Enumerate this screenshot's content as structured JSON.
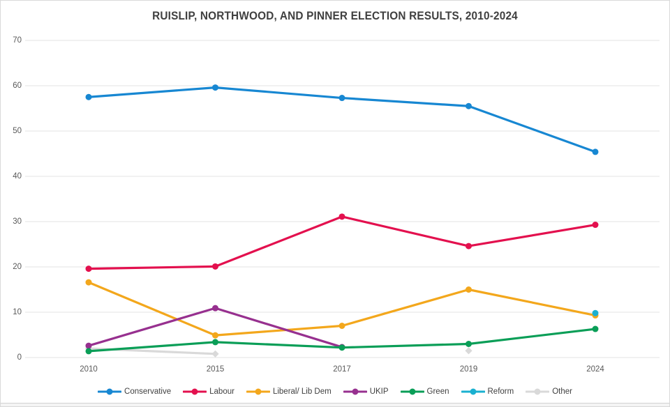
{
  "title": "RUISLIP, NORTHWOOD, AND PINNER ELECTION RESULTS, 2010-2024",
  "colors": {
    "background": "#ffffff",
    "border": "#d9d9d9",
    "grid": "#e3e3e3",
    "axis_text": "#595959",
    "title_text": "#404040",
    "legend_text": "#404040"
  },
  "chart_data": {
    "type": "line",
    "title": "RUISLIP, NORTHWOOD, AND PINNER ELECTION RESULTS, 2010-2024",
    "categories": [
      "2010",
      "2015",
      "2017",
      "2019",
      "2024"
    ],
    "series": [
      {
        "name": "Conservative",
        "color": "#1787d2",
        "marker": "circle",
        "values": [
          57.5,
          59.6,
          57.3,
          55.5,
          45.4
        ]
      },
      {
        "name": "Labour",
        "color": "#e3104e",
        "marker": "circle",
        "values": [
          19.6,
          20.1,
          31.1,
          24.6,
          29.3
        ]
      },
      {
        "name": "Liberal/ Lib Dem",
        "color": "#f3a71c",
        "marker": "circle",
        "values": [
          16.6,
          4.9,
          7.0,
          15.0,
          9.3
        ]
      },
      {
        "name": "UKIP",
        "color": "#97308f",
        "marker": "circle",
        "values": [
          2.6,
          10.9,
          2.3,
          null,
          null
        ]
      },
      {
        "name": "Green",
        "color": "#0a9e57",
        "marker": "circle",
        "values": [
          1.4,
          3.4,
          2.2,
          3.0,
          6.3
        ]
      },
      {
        "name": "Reform",
        "color": "#1ab0d0",
        "marker": "circle",
        "values": [
          null,
          null,
          null,
          null,
          9.8
        ]
      },
      {
        "name": "Other",
        "color": "#d9d9d9",
        "marker": "diamond",
        "values": [
          2.0,
          0.8,
          null,
          1.5,
          null
        ]
      }
    ],
    "xlabel": "",
    "ylabel": "",
    "ylim": [
      0,
      70
    ],
    "yticks": [
      0,
      10,
      20,
      30,
      40,
      50,
      60,
      70
    ],
    "grid": "horizontal",
    "legend_position": "bottom"
  }
}
